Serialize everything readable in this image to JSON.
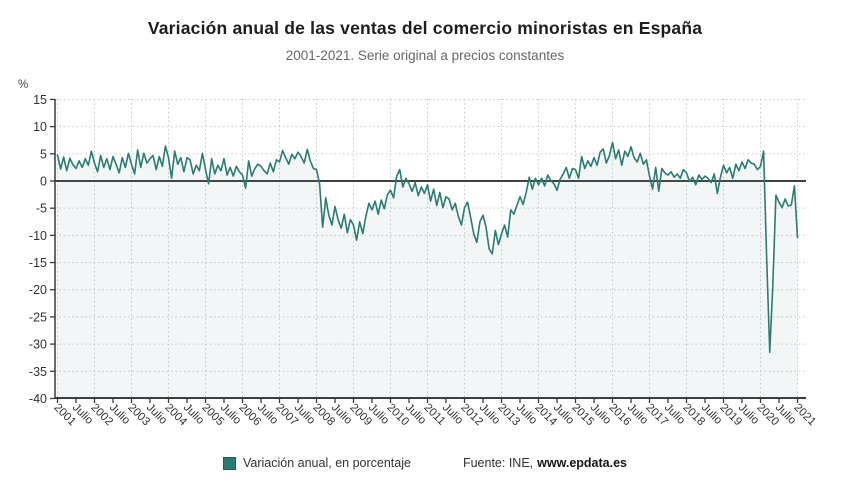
{
  "header": {
    "title": "Variación anual de las ventas del comercio minoristas en España",
    "subtitle": "2001-2021. Serie original a precios constantes"
  },
  "legend": {
    "series_label": "Variación anual, en porcentaje"
  },
  "source": {
    "prefix": "Fuente: INE,",
    "site": "www.epdata.es"
  },
  "chart_data": {
    "type": "line",
    "title": "Variación anual de las ventas del comercio minoristas en España",
    "subtitle": "2001-2021. Serie original a precios constantes",
    "unit_label": "%",
    "frequency": "monthly",
    "start_month": "2001-01",
    "end_month": "2021-01",
    "ylim": [
      -40,
      15
    ],
    "yticks": [
      15,
      10,
      5,
      0,
      -5,
      -10,
      -15,
      -20,
      -25,
      -30,
      -35,
      -40
    ],
    "xtick_interval_months": 6,
    "xtick_labels": [
      "2001",
      "Julio",
      "2002",
      "Julio",
      "2003",
      "Julio",
      "2004",
      "Julio",
      "2005",
      "Julio",
      "2006",
      "Julio",
      "2007",
      "Julio",
      "2008",
      "Julio",
      "2009",
      "Julio",
      "2010",
      "Julio",
      "2011",
      "Julio",
      "2012",
      "Julio",
      "2013",
      "Julio",
      "2014",
      "Julio",
      "2015",
      "Julio",
      "2016",
      "Julio",
      "2017",
      "Julio",
      "2018",
      "Julio",
      "2019",
      "Julio",
      "2020",
      "Julio",
      "2021"
    ],
    "grid": {
      "horizontal": true,
      "vertical_every_months": 12,
      "style": "dotted"
    },
    "legend_position": "bottom",
    "colors": {
      "line": "#2b7b73",
      "area_fill": "rgba(110,150,170,0.09)",
      "grid": "#c9c9c9",
      "axis": "#3a3a3a",
      "zero_line": "#3f3f3f",
      "tick_text": "#333333"
    },
    "series": [
      {
        "name": "Variación anual, en porcentaje",
        "color": "#2b7b73",
        "values": [
          4.8,
          2.2,
          4.4,
          1.9,
          4.2,
          3.0,
          2.3,
          3.7,
          2.5,
          4.1,
          2.9,
          5.5,
          3.3,
          1.7,
          4.7,
          2.5,
          4.1,
          2.1,
          4.5,
          3.1,
          1.5,
          4.3,
          2.5,
          5.1,
          3.1,
          1.3,
          5.7,
          2.5,
          5.1,
          3.3,
          4.1,
          4.7,
          2.1,
          4.5,
          2.7,
          6.4,
          4.3,
          0.5,
          5.5,
          3.1,
          4.3,
          1.7,
          4.3,
          3.9,
          1.3,
          2.9,
          1.9,
          5.1,
          2.1,
          -0.5,
          4.1,
          1.3,
          2.9,
          1.9,
          4.1,
          1.1,
          2.5,
          0.9,
          2.7,
          1.7,
          1.1,
          -1.3,
          3.7,
          0.9,
          2.3,
          3.1,
          2.7,
          1.9,
          1.3,
          3.3,
          1.7,
          3.9,
          3.5,
          5.6,
          4.3,
          3.1,
          4.9,
          4.1,
          5.3,
          4.5,
          3.3,
          5.8,
          3.7,
          2.3,
          2.1,
          -0.5,
          -8.5,
          -3.1,
          -6.3,
          -8.1,
          -4.7,
          -7.1,
          -8.7,
          -6.1,
          -9.5,
          -7.1,
          -8.1,
          -10.9,
          -7.5,
          -9.7,
          -6.5,
          -4.1,
          -5.3,
          -3.7,
          -6.1,
          -3.5,
          -5.1,
          -2.5,
          -1.7,
          -3.1,
          0.9,
          2.1,
          -1.1,
          0.5,
          -0.5,
          -1.9,
          -0.3,
          -2.7,
          -1.1,
          -2.3,
          -0.7,
          -3.7,
          -1.5,
          -4.5,
          -2.1,
          -4.9,
          -2.9,
          -3.3,
          -5.3,
          -4.1,
          -6.5,
          -8.1,
          -4.9,
          -3.9,
          -6.7,
          -9.7,
          -11.3,
          -7.5,
          -6.3,
          -8.5,
          -12.5,
          -13.4,
          -9.1,
          -11.7,
          -9.7,
          -8.1,
          -10.3,
          -5.3,
          -6.1,
          -4.5,
          -2.9,
          -4.3,
          -2.1,
          0.7,
          -1.5,
          0.5,
          -0.7,
          0.5,
          -0.9,
          1.1,
          0.1,
          -0.5,
          -1.7,
          0.3,
          1.3,
          2.5,
          0.5,
          2.3,
          2.1,
          0.5,
          4.5,
          2.3,
          3.7,
          2.7,
          4.3,
          2.9,
          5.3,
          5.9,
          3.3,
          4.7,
          7.1,
          4.1,
          5.7,
          2.9,
          5.5,
          4.5,
          6.3,
          4.3,
          3.5,
          5.1,
          3.1,
          3.9,
          0.9,
          -1.5,
          2.5,
          -1.9,
          2.3,
          1.5,
          1.1,
          1.7,
          0.7,
          1.3,
          0.5,
          2.1,
          1.5,
          -0.1,
          0.7,
          -0.7,
          1.1,
          0.3,
          0.9,
          0.5,
          -0.3,
          1.3,
          -2.3,
          0.7,
          2.9,
          1.5,
          2.5,
          0.5,
          3.1,
          1.9,
          3.5,
          2.3,
          3.9,
          3.3,
          3.1,
          2.1,
          2.7,
          5.5,
          -14.2,
          -31.5,
          -19.0,
          -2.6,
          -3.9,
          -4.9,
          -3.3,
          -4.6,
          -4.4,
          -0.9,
          -10.4
        ]
      }
    ]
  }
}
